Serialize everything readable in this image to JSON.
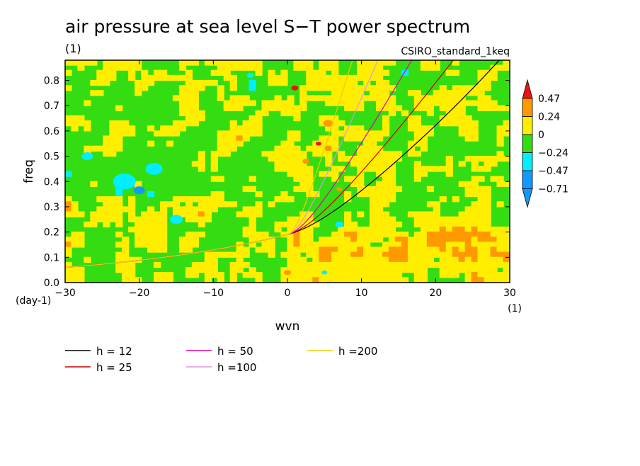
{
  "title": "air pressure at sea level S−T power spectrum",
  "unit_label": "(1)",
  "model_label": "CSIRO_standard_1keq",
  "colors": {
    "red": "#ee1111",
    "orange": "#ff9900",
    "yellow": "#ffee00",
    "green": "#33dd11",
    "cyan": "#00eeff",
    "blue": "#1199ff"
  },
  "colorbar": {
    "labels": [
      "0.47",
      "0.24",
      "0",
      "−0.24",
      "−0.47",
      "−0.71"
    ]
  },
  "chart_data": {
    "type": "heatmap",
    "title": "air pressure at sea level S−T power spectrum",
    "xlabel": "wvn",
    "ylabel": "freq",
    "x_unit": "(1)",
    "y_unit": "(day-1)",
    "xlim": [
      -30,
      30
    ],
    "ylim": [
      0,
      0.88
    ],
    "x_ticks": [
      -30,
      -20,
      -10,
      0,
      10,
      20,
      30
    ],
    "x_tick_labels": [
      "−30",
      "−20",
      "−10",
      "0",
      "10",
      "20",
      "30"
    ],
    "y_ticks": [
      0,
      0.1,
      0.2,
      0.3,
      0.4,
      0.5,
      0.6,
      0.7,
      0.8
    ],
    "y_tick_labels": [
      "0.0",
      "0.1",
      "0.2",
      "0.3",
      "0.4",
      "0.5",
      "0.6",
      "0.7",
      "0.8"
    ],
    "levels": [
      -0.71,
      -0.47,
      -0.24,
      0,
      0.24,
      0.47
    ],
    "approximate_field_summary": "mostly green (-0.24 to 0) and yellow (0 to 0.24) patches; cyan (< -0.24) blobs near wvn -25..-15, freq 0.35..0.5; orange/red (> 0.24) spots near wvn 0..8, freq 0.45..0.8",
    "dispersion_curves": [
      {
        "name": "h = 12",
        "h": 12,
        "color": "#000000"
      },
      {
        "name": "h = 25",
        "h": 25,
        "color": "#cc0000"
      },
      {
        "name": "h = 50",
        "h": 50,
        "color": "#dd00aa"
      },
      {
        "name": "h =100",
        "h": 100,
        "color": "#dd99dd"
      },
      {
        "name": "h =200",
        "h": 200,
        "color": "#eecc00"
      }
    ]
  }
}
